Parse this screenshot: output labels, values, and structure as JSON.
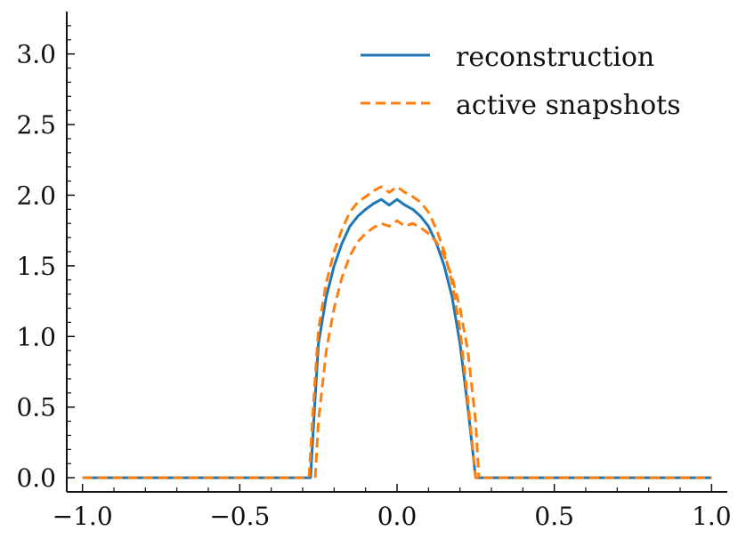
{
  "chart_data": {
    "type": "line",
    "title": "",
    "xlabel": "",
    "ylabel": "",
    "xlim": [
      -1.05,
      1.05
    ],
    "ylim": [
      -0.1,
      3.3
    ],
    "legend_position": "top-right",
    "x_ticks": [
      {
        "value": -1.0,
        "label": "−1.0"
      },
      {
        "value": -0.5,
        "label": "−0.5"
      },
      {
        "value": 0.0,
        "label": "0.0"
      },
      {
        "value": 0.5,
        "label": "0.5"
      },
      {
        "value": 1.0,
        "label": "1.0"
      }
    ],
    "y_ticks": [
      {
        "value": 0.0,
        "label": "0.0"
      },
      {
        "value": 0.5,
        "label": "0.5"
      },
      {
        "value": 1.0,
        "label": "1.0"
      },
      {
        "value": 1.5,
        "label": "1.5"
      },
      {
        "value": 2.0,
        "label": "2.0"
      },
      {
        "value": 2.5,
        "label": "2.5"
      },
      {
        "value": 3.0,
        "label": "3.0"
      }
    ],
    "series": [
      {
        "name": "reconstruction",
        "color": "#1f77b4",
        "style": "solid",
        "x": [
          -1.0,
          -0.275,
          -0.262,
          -0.25,
          -0.225,
          -0.2,
          -0.175,
          -0.15,
          -0.125,
          -0.1,
          -0.075,
          -0.05,
          -0.025,
          0.0,
          0.025,
          0.05,
          0.075,
          0.1,
          0.125,
          0.15,
          0.175,
          0.2,
          0.225,
          0.25,
          0.262,
          0.275,
          1.0
        ],
        "y": [
          0.0,
          0.0,
          0.5,
          0.95,
          1.28,
          1.5,
          1.66,
          1.78,
          1.85,
          1.9,
          1.94,
          1.97,
          1.93,
          1.97,
          1.93,
          1.9,
          1.85,
          1.78,
          1.66,
          1.5,
          1.28,
          0.95,
          0.5,
          0.0,
          0.0,
          0.0,
          0.0
        ]
      },
      {
        "name": "active snapshots",
        "color": "#ff7f0e",
        "style": "dashed",
        "x": [
          -1.0,
          -0.28,
          -0.265,
          -0.25,
          -0.225,
          -0.2,
          -0.175,
          -0.15,
          -0.125,
          -0.1,
          -0.075,
          -0.05,
          -0.025,
          0.0,
          0.025,
          0.05,
          0.075,
          0.1,
          0.125,
          0.15,
          0.175,
          0.2,
          0.225,
          0.25,
          0.265,
          0.28,
          1.0
        ],
        "y": [
          0.0,
          0.0,
          0.55,
          1.05,
          1.38,
          1.6,
          1.76,
          1.88,
          1.95,
          1.99,
          2.03,
          2.06,
          2.02,
          2.06,
          2.02,
          1.99,
          1.95,
          1.88,
          1.76,
          1.6,
          1.38,
          1.05,
          0.55,
          0.0,
          0.0,
          0.0,
          0.0
        ]
      },
      {
        "name": "",
        "color": "#ff7f0e",
        "style": "dashed",
        "x": [
          -0.26,
          -0.25,
          -0.225,
          -0.2,
          -0.175,
          -0.15,
          -0.125,
          -0.1,
          -0.075,
          -0.05,
          -0.025,
          0.0,
          0.025,
          0.05,
          0.075,
          0.1,
          0.125,
          0.15,
          0.175,
          0.2,
          0.225,
          0.25,
          0.26
        ],
        "y": [
          0.0,
          0.4,
          0.9,
          1.2,
          1.42,
          1.57,
          1.67,
          1.73,
          1.77,
          1.8,
          1.78,
          1.82,
          1.78,
          1.8,
          1.77,
          1.73,
          1.67,
          1.57,
          1.42,
          1.2,
          0.9,
          0.4,
          0.0
        ]
      }
    ]
  }
}
